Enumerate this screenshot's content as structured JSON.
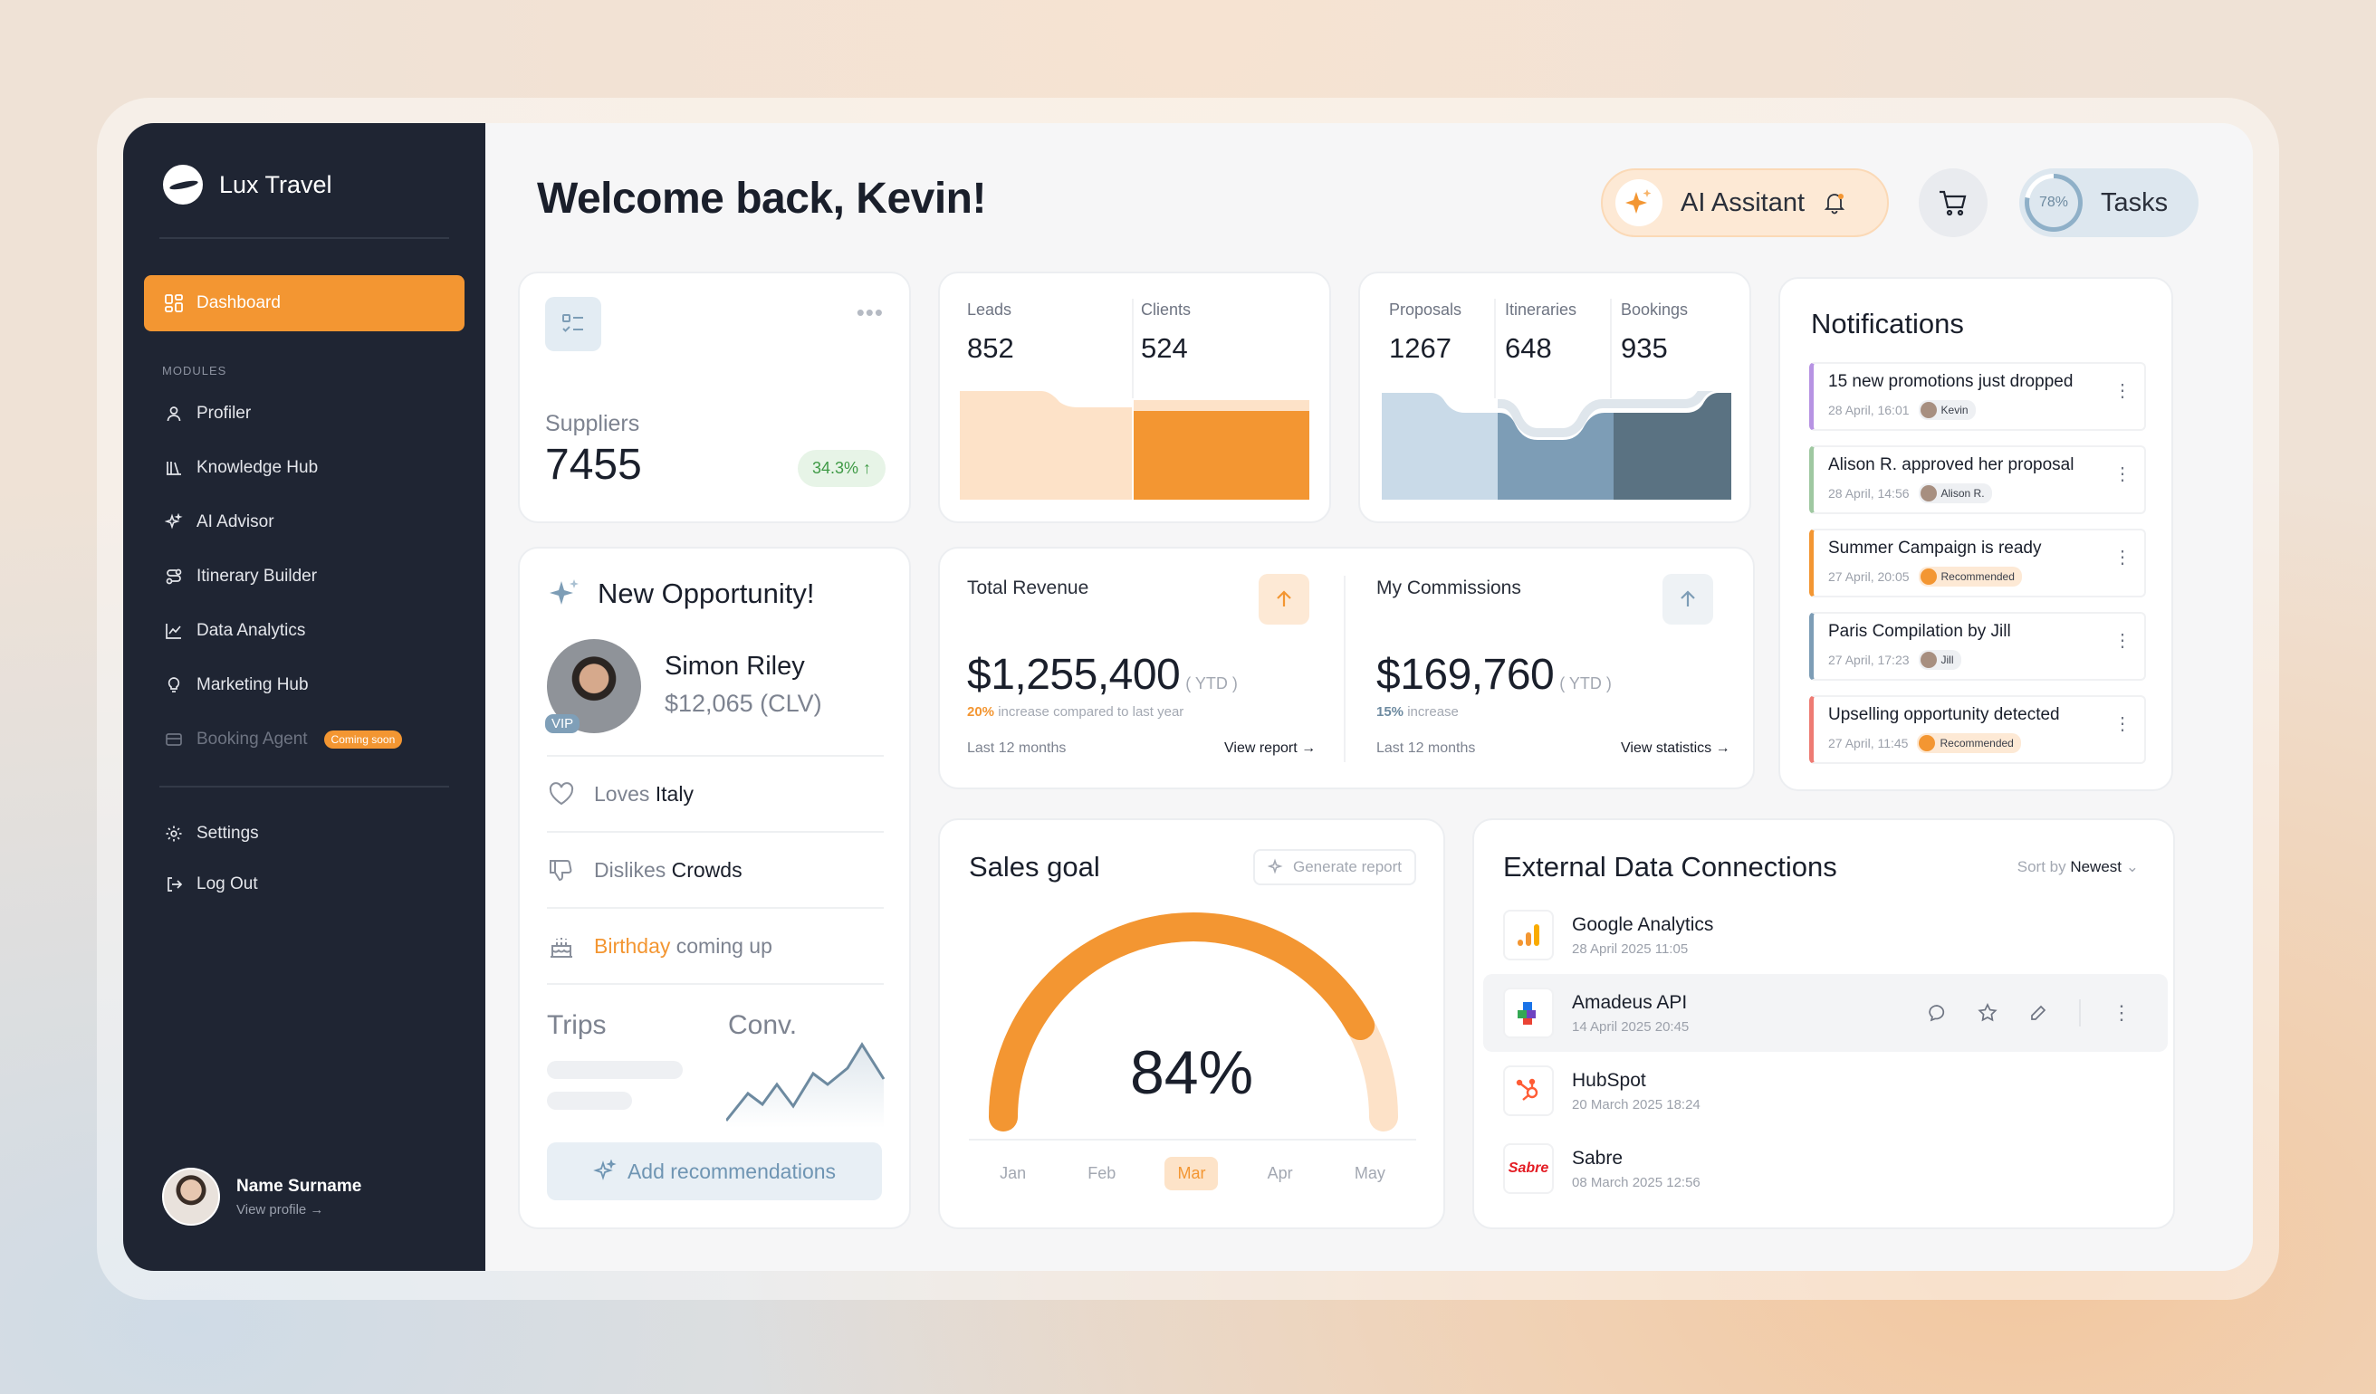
{
  "brand": {
    "name": "Lux Travel"
  },
  "sidebar": {
    "active": "Dashboard",
    "section_label": "MODULES",
    "items": [
      {
        "label": "Profiler"
      },
      {
        "label": "Knowledge Hub"
      },
      {
        "label": "AI Advisor"
      },
      {
        "label": "Itinerary Builder"
      },
      {
        "label": "Data Analytics"
      },
      {
        "label": "Marketing Hub"
      },
      {
        "label": "Booking Agent",
        "badge": "Coming soon"
      }
    ],
    "bottom": [
      {
        "label": "Settings"
      },
      {
        "label": "Log Out"
      }
    ],
    "profile": {
      "name": "Name Surname",
      "link": "View profile →"
    }
  },
  "header": {
    "welcome": "Welcome back, Kevin!",
    "ai_label": "AI Assitant",
    "tasks_progress": "78%",
    "tasks_progress_value": 0.78,
    "tasks_label": "Tasks"
  },
  "suppliers": {
    "label": "Suppliers",
    "value": "7455",
    "change": "34.3%"
  },
  "leads_clients": {
    "leads_label": "Leads",
    "leads": "852",
    "clients_label": "Clients",
    "clients": "524"
  },
  "pipeline": {
    "proposals_label": "Proposals",
    "proposals": "1267",
    "itineraries_label": "Itineraries",
    "itineraries": "648",
    "bookings_label": "Bookings",
    "bookings": "935"
  },
  "opportunity": {
    "title": "New Opportunity!",
    "name": "Simon Riley",
    "clv": "$12,065 (CLV)",
    "badge": "VIP",
    "loves_prefix": "Loves",
    "loves": "Italy",
    "dislikes_prefix": "Dislikes",
    "dislikes": "Crowds",
    "birthday_hl": "Birthday",
    "birthday_rest": "coming up",
    "trips_label": "Trips",
    "conv_label": "Conv.",
    "button": "Add recommendations"
  },
  "revenue": {
    "label": "Total Revenue",
    "value": "$1,255,400",
    "ytd": "( YTD )",
    "change": "20%",
    "change_text": "increase compared to last year",
    "period": "Last 12 months",
    "link": "View report →"
  },
  "commissions": {
    "label": "My Commissions",
    "value": "$169,760",
    "ytd": "( YTD )",
    "change": "15%",
    "change_text": "increase",
    "period": "Last 12 months",
    "link": "View statistics →"
  },
  "notifications": {
    "title": "Notifications",
    "items": [
      {
        "text": "15 new promotions just dropped",
        "time": "28 April, 16:01",
        "chip": "Kevin",
        "color": "#b793e3"
      },
      {
        "text": "Alison R. approved her proposal",
        "time": "28 April, 14:56",
        "chip": "Alison R.",
        "color": "#9fc8a1"
      },
      {
        "text": "Summer Campaign is ready",
        "time": "27 April, 20:05",
        "chip": "Recommended",
        "color": "#f39632"
      },
      {
        "text": "Paris Compilation by Jill",
        "time": "27 April, 17:23",
        "chip": "Jill",
        "color": "#7d9db6"
      },
      {
        "text": "Upselling opportunity detected",
        "time": "27 April, 11:45",
        "chip": "Recommended",
        "color": "#ee7b73"
      }
    ]
  },
  "sales_goal": {
    "title": "Sales goal",
    "button": "Generate report",
    "value": "84%",
    "value_num": 84,
    "months": [
      "Jan",
      "Feb",
      "Mar",
      "Apr",
      "May"
    ],
    "active_month": "Mar"
  },
  "external": {
    "title": "External Data Connections",
    "sort_prefix": "Sort by",
    "sort_value": "Newest",
    "items": [
      {
        "name": "Google Analytics",
        "date": "28 April 2025 11:05",
        "icon": "google-analytics-icon"
      },
      {
        "name": "Amadeus API",
        "date": "14 April 2025 20:45",
        "icon": "amadeus-icon"
      },
      {
        "name": "HubSpot",
        "date": "20 March 2025 18:24",
        "icon": "hubspot-icon"
      },
      {
        "name": "Sabre",
        "date": "08 March 2025 12:56",
        "icon": "sabre-icon",
        "logo_text": "Sabre"
      }
    ]
  },
  "colors": {
    "accent": "#f39632",
    "sidebar": "#1f2533",
    "blue": "#7d9db6"
  }
}
